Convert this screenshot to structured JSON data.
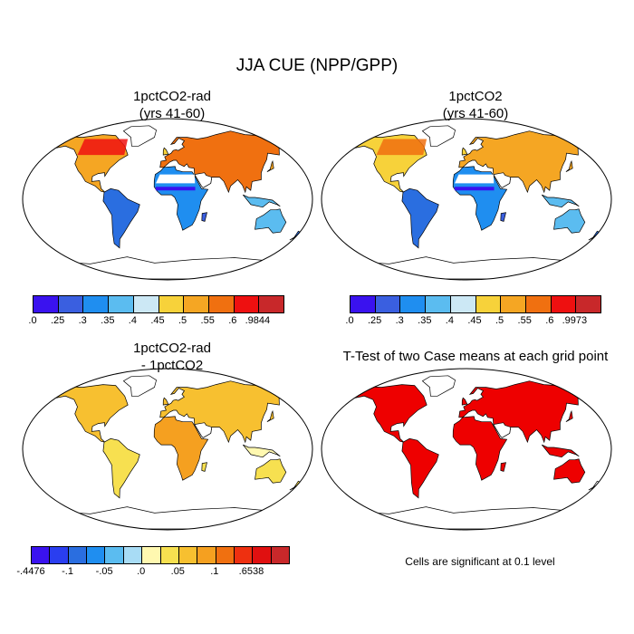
{
  "title": "JJA CUE (NPP/GPP)",
  "panels": [
    {
      "title": "1pctCO2-rad\n(yrs 41-60)",
      "type": "filled-map"
    },
    {
      "title": "1pctCO2\n(yrs 41-60)",
      "type": "filled-map"
    },
    {
      "title": "1pctCO2-rad\n- 1pctCO2",
      "type": "filled-map"
    },
    {
      "title": "T-Test of two Case means at each grid point",
      "type": "significance-map"
    }
  ],
  "colorbars": [
    {
      "colors": [
        "#3a12ef",
        "#3a5fe0",
        "#1f8ef0",
        "#5bbcf0",
        "#cce8f5",
        "#f7d23a",
        "#f5a623",
        "#f07010",
        "#ee1010",
        "#c8282a"
      ],
      "labels": [
        ".0",
        ".25",
        ".3",
        ".35",
        ".4",
        ".45",
        ".5",
        ".55",
        ".6",
        ".9844"
      ]
    },
    {
      "colors": [
        "#3a12ef",
        "#3a5fe0",
        "#1f8ef0",
        "#5bbcf0",
        "#cce8f5",
        "#f7d23a",
        "#f5a623",
        "#f07010",
        "#ee1010",
        "#c8282a"
      ],
      "labels": [
        ".0",
        ".25",
        ".3",
        ".35",
        ".4",
        ".45",
        ".5",
        ".55",
        ".6",
        ".9973"
      ]
    },
    {
      "colors": [
        "#3a12ef",
        "#2a3ef0",
        "#2a6ee0",
        "#1f8ef0",
        "#5bbcf0",
        "#a8dcf5",
        "#fff8b0",
        "#f7e050",
        "#f7c030",
        "#f5a020",
        "#f07010",
        "#ee3010",
        "#e01010",
        "#c8282a"
      ],
      "labels": [
        "-.4476",
        "-.1",
        "-.05",
        ".0",
        ".05",
        ".1",
        ".6538"
      ]
    }
  ],
  "significance_color": "#ee0000",
  "note": "Cells are significant at 0.1 level"
}
